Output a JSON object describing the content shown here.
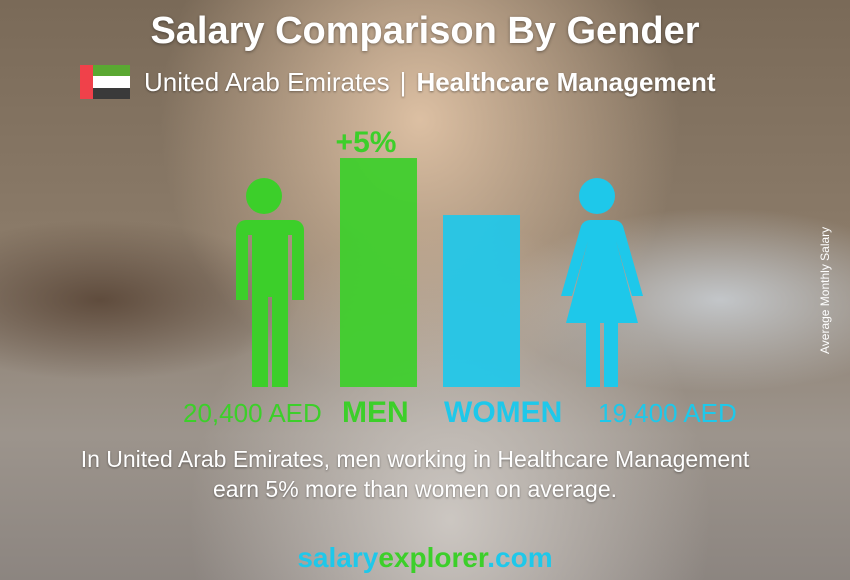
{
  "header": {
    "title": "Salary Comparison By Gender",
    "country": "United Arab Emirates",
    "separator": "|",
    "job": "Healthcare Management"
  },
  "flag": {
    "colors": [
      "#f0414a",
      "#5aa832",
      "#ffffff",
      "#3a3a3a"
    ]
  },
  "chart_data": {
    "type": "bar",
    "categories": [
      "MEN",
      "WOMEN"
    ],
    "values": [
      20400,
      19400
    ],
    "value_labels": [
      "20,400 AED",
      "19,400 AED"
    ],
    "difference_label": "+5%",
    "ylabel": "Average Monthly Salary",
    "colors": {
      "men": "#3ccf2a",
      "women": "#1ec8ea"
    }
  },
  "description": {
    "line1": "In United Arab Emirates, men working in Healthcare Management",
    "line2": "earn 5% more than women on average."
  },
  "brand": {
    "part1": "salary",
    "part2": "explorer",
    "part3": ".com"
  }
}
